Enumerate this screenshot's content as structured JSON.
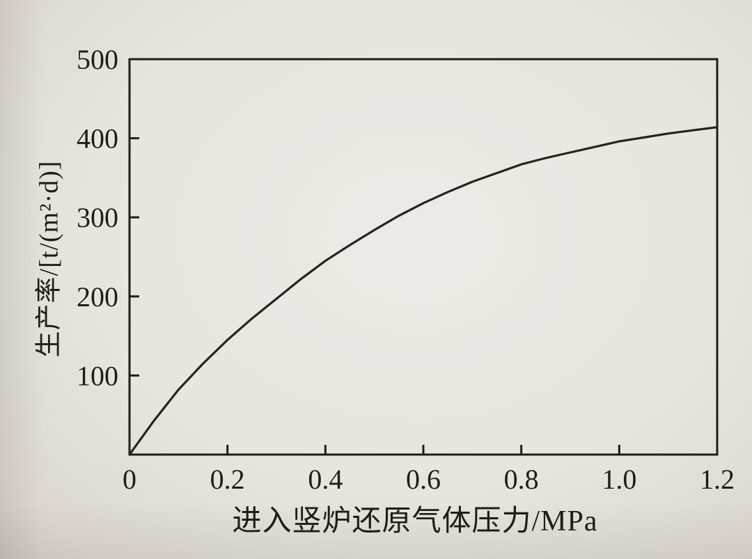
{
  "page": {
    "background_color": "#e8e5e0",
    "ink_color": "#201d19"
  },
  "chart_data": {
    "type": "line",
    "title": "",
    "xlabel": "进入竖炉还原气体压力/MPa",
    "ylabel": "生产率/[t/(m²·d)]",
    "xlim": [
      0,
      1.2
    ],
    "ylim": [
      0,
      500
    ],
    "x_ticks": [
      0,
      0.2,
      0.4,
      0.6,
      0.8,
      1.0,
      1.2
    ],
    "x_tick_labels": [
      "0",
      "0.2",
      "0.4",
      "0.6",
      "0.8",
      "1.0",
      "1.2"
    ],
    "y_ticks": [
      100,
      200,
      300,
      400,
      500
    ],
    "y_tick_labels": [
      "100",
      "200",
      "300",
      "400",
      "500"
    ],
    "grid": false,
    "legend": null,
    "line_color": "#26231f",
    "axis_color": "#201d19",
    "series": [
      {
        "name": "production-rate-vs-inlet-reducing-gas-pressure",
        "x": [
          0,
          0.05,
          0.1,
          0.15,
          0.2,
          0.25,
          0.3,
          0.35,
          0.4,
          0.45,
          0.5,
          0.55,
          0.6,
          0.65,
          0.7,
          0.75,
          0.8,
          0.85,
          0.9,
          0.95,
          1.0,
          1.05,
          1.1,
          1.15,
          1.2
        ],
        "y": [
          0,
          43,
          82,
          115,
          145,
          172,
          197,
          222,
          245,
          265,
          284,
          302,
          318,
          332,
          345,
          356,
          367,
          375,
          382,
          389,
          396,
          401,
          406,
          410,
          414
        ]
      }
    ]
  }
}
